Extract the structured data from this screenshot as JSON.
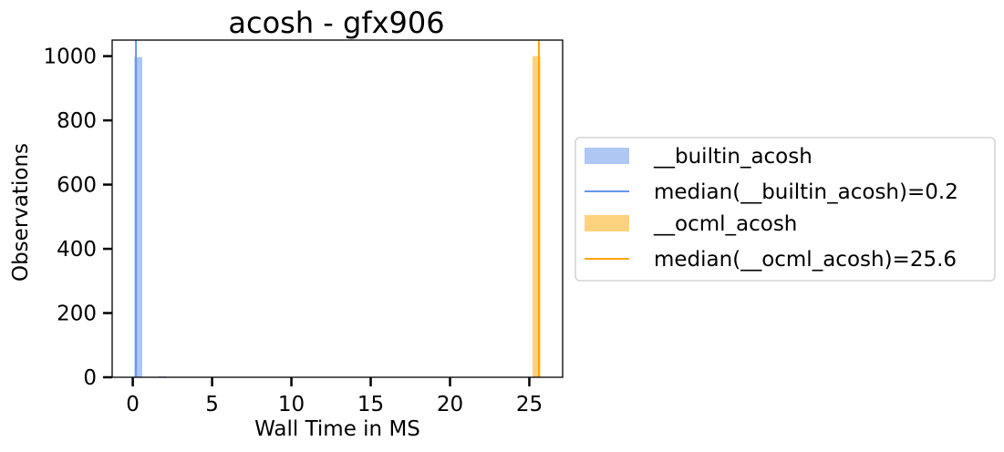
{
  "chart_data": {
    "type": "bar",
    "title": "acosh - gfx906",
    "xlabel": "Wall Time in MS",
    "ylabel": "Observations",
    "xlim": [
      -1.3,
      27.1
    ],
    "ylim": [
      0,
      1050
    ],
    "xticks": [
      0,
      5,
      10,
      15,
      20,
      25
    ],
    "yticks": [
      0,
      200,
      400,
      600,
      800,
      1000
    ],
    "grid": false,
    "legend_position": "center-right-outside",
    "series": [
      {
        "name": "__builtin_acosh",
        "kind": "histogram",
        "color": "#aec7f3",
        "bins": [
          {
            "x0": 0.1,
            "x1": 0.6,
            "count": 997
          },
          {
            "x0": 1.6,
            "x1": 2.1,
            "count": 3
          }
        ]
      },
      {
        "name": "median(__builtin_acosh)=0.2",
        "kind": "vline",
        "color": "#6495ed",
        "x": 0.2
      },
      {
        "name": "__ocml_acosh",
        "kind": "histogram",
        "color": "#fdd27f",
        "bins": [
          {
            "x0": 25.2,
            "x1": 25.7,
            "count": 1000
          }
        ]
      },
      {
        "name": "median(__ocml_acosh)=25.6",
        "kind": "vline",
        "color": "#ffa500",
        "x": 25.6
      }
    ]
  }
}
